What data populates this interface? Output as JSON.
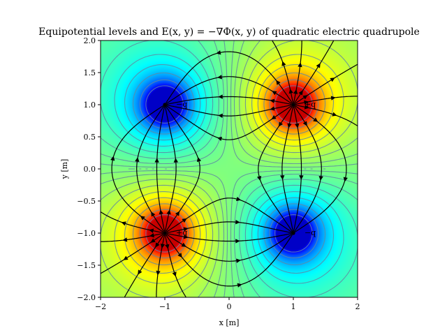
{
  "chart_data": {
    "type": "contour",
    "title": "Equipotential levels and E(x, y) = −∇Φ(x, y) of quadratic electric quadrupole",
    "xlabel": "x [m]",
    "ylabel": "y [m]",
    "xlim": [
      -2,
      2
    ],
    "ylim": [
      -2,
      2
    ],
    "xticks": [
      "−2",
      "−1",
      "0",
      "1",
      "2"
    ],
    "yticks": [
      "−2.0",
      "−1.5",
      "−1.0",
      "−0.5",
      "0.0",
      "0.5",
      "1.0",
      "1.5",
      "2.0"
    ],
    "xtick_values": [
      -2,
      -1,
      0,
      1,
      2
    ],
    "ytick_values": [
      -2.0,
      -1.5,
      -1.0,
      -0.5,
      0.0,
      0.5,
      1.0,
      1.5,
      2.0
    ],
    "charges": [
      {
        "x": -1,
        "y": 1,
        "q": -1,
        "label": "−q"
      },
      {
        "x": 1,
        "y": 1,
        "q": 1,
        "label": "+q"
      },
      {
        "x": -1,
        "y": -1,
        "q": 1,
        "label": "+q"
      },
      {
        "x": 1,
        "y": -1,
        "q": -1,
        "label": "−q"
      }
    ],
    "colormap": "jet",
    "grid": false
  }
}
